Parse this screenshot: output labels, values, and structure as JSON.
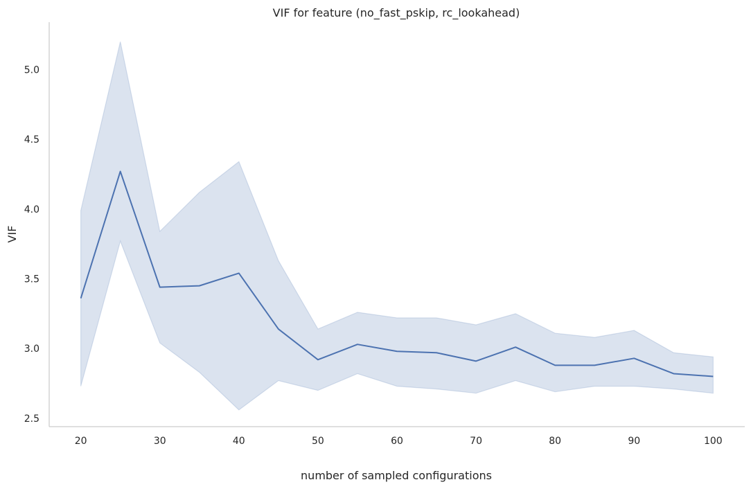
{
  "chart_data": {
    "type": "line",
    "title": "VIF for feature (no_fast_pskip, rc_lookahead)",
    "xlabel": "number of sampled configurations",
    "ylabel": "VIF",
    "x": [
      20,
      25,
      30,
      35,
      40,
      45,
      50,
      55,
      60,
      65,
      70,
      75,
      80,
      85,
      90,
      95,
      100
    ],
    "series": [
      {
        "values": [
          3.36,
          4.27,
          3.44,
          3.45,
          3.54,
          3.14,
          2.92,
          3.03,
          2.98,
          2.97,
          2.91,
          3.01,
          2.88,
          2.88,
          2.93,
          2.82,
          2.8
        ],
        "ci_lower": [
          2.73,
          3.77,
          3.04,
          2.83,
          2.56,
          2.77,
          2.7,
          2.82,
          2.73,
          2.71,
          2.68,
          2.77,
          2.69,
          2.73,
          2.73,
          2.71,
          2.68
        ],
        "ci_upper": [
          3.99,
          5.2,
          3.84,
          4.12,
          4.34,
          3.63,
          3.14,
          3.26,
          3.22,
          3.22,
          3.17,
          3.25,
          3.11,
          3.08,
          3.13,
          2.97,
          2.94
        ],
        "color": "#4c72b0",
        "band_color": "#4c72b0"
      }
    ],
    "xticks": [
      "20",
      "30",
      "40",
      "50",
      "60",
      "70",
      "80",
      "90",
      "100"
    ],
    "yticks": [
      "2.5",
      "3.0",
      "3.5",
      "4.0",
      "4.5",
      "5.0"
    ],
    "xlim": [
      16,
      104
    ],
    "ylim": [
      2.44,
      5.34
    ],
    "grid": false,
    "legend": "none"
  }
}
